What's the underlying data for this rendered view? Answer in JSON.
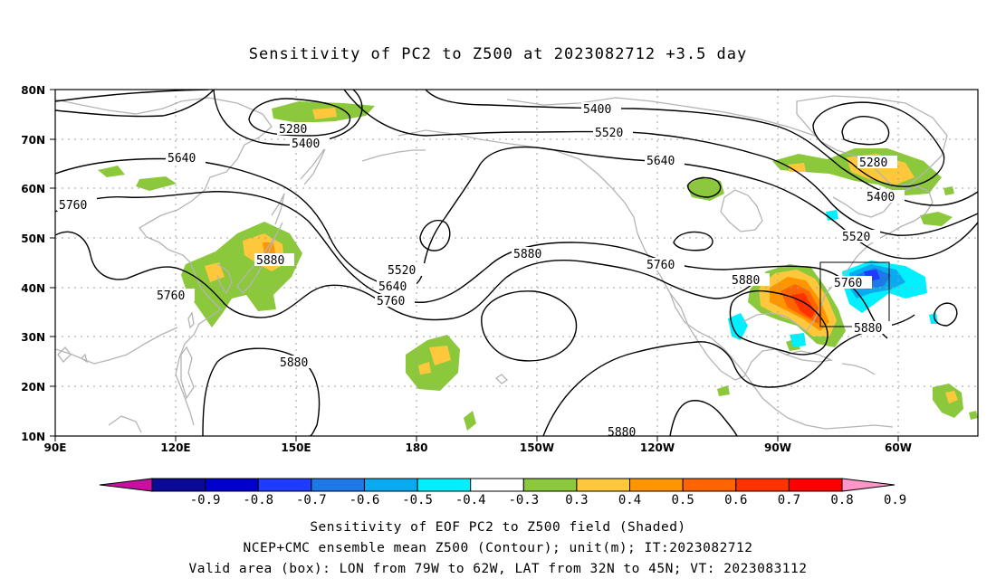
{
  "title": "Sensitivity of PC2 to Z500 at 2023082712 +3.5 day",
  "lat_labels": [
    "80N",
    "70N",
    "60N",
    "50N",
    "40N",
    "30N",
    "20N",
    "10N"
  ],
  "lon_labels": [
    "90E",
    "120E",
    "150E",
    "180",
    "150W",
    "120W",
    "90W",
    "60W"
  ],
  "colorbar": {
    "labels": [
      "-0.9",
      "-0.8",
      "-0.7",
      "-0.6",
      "-0.5",
      "-0.4",
      "-0.3",
      "0.3",
      "0.4",
      "0.5",
      "0.6",
      "0.7",
      "0.8",
      "0.9"
    ],
    "colors": {
      "below_min": "#c80fa0",
      "bins": [
        "#0a0a96",
        "#0000cd",
        "#1e3cff",
        "#1e78e6",
        "#0aaaf0",
        "#00f0ff",
        "#ffffff",
        "#8cc83c",
        "#ffc83c",
        "#ff9600",
        "#ff6400",
        "#ff3200",
        "#ff0000"
      ],
      "above_max": "#ff96c8"
    }
  },
  "contour_labels": [
    "5280",
    "5400",
    "5640",
    "5760",
    "5880",
    "5520",
    "5640",
    "5760",
    "5880",
    "5400",
    "5520",
    "5640",
    "5760",
    "5880",
    "5280",
    "5400",
    "5520",
    "5760",
    "5880",
    "5880",
    "5880",
    "5760",
    "5880"
  ],
  "captions": {
    "line1": "Sensitivity of EOF PC2 to Z500 field (Shaded)",
    "line2": "NCEP+CMC ensemble mean Z500 (Contour); unit(m); IT:2023082712",
    "line3": "Valid area (box): LON from 79W to 62W, LAT from 32N to 45N; VT: 2023083112"
  },
  "colors": {
    "contour": "#000000",
    "coast": "#b4b4b4",
    "grid": "#a0a0a0"
  }
}
